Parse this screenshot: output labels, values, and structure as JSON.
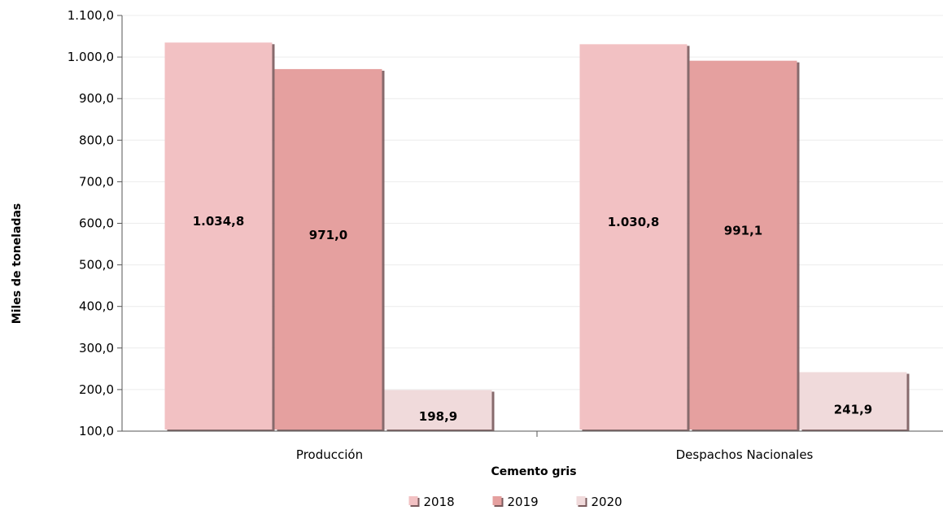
{
  "chart_data": {
    "type": "bar",
    "categories": [
      "Producción",
      "Despachos Nacionales"
    ],
    "series": [
      {
        "name": "2018",
        "values": [
          1034.8,
          1030.8
        ],
        "labels": [
          "1.034,8",
          "1.030,8"
        ],
        "color": "#f2c1c3"
      },
      {
        "name": "2019",
        "values": [
          971.0,
          991.1
        ],
        "labels": [
          "971,0",
          "991,1"
        ],
        "color": "#e5a09f"
      },
      {
        "name": "2020",
        "values": [
          198.9,
          241.9
        ],
        "labels": [
          "198,9",
          "241,9"
        ],
        "color": "#f0dadb"
      }
    ],
    "xlabel": "Cemento gris",
    "ylabel": "Miles de toneladas",
    "ylim": [
      100,
      1100
    ],
    "yticks": [
      100,
      200,
      300,
      400,
      500,
      600,
      700,
      800,
      900,
      1000,
      1100
    ],
    "ytick_labels": [
      "100,0",
      "200,0",
      "300,0",
      "400,0",
      "500,0",
      "600,0",
      "700,0",
      "800,0",
      "900,0",
      "1.000,0",
      "1.100,0"
    ],
    "grid": true,
    "legend": "bottom"
  }
}
